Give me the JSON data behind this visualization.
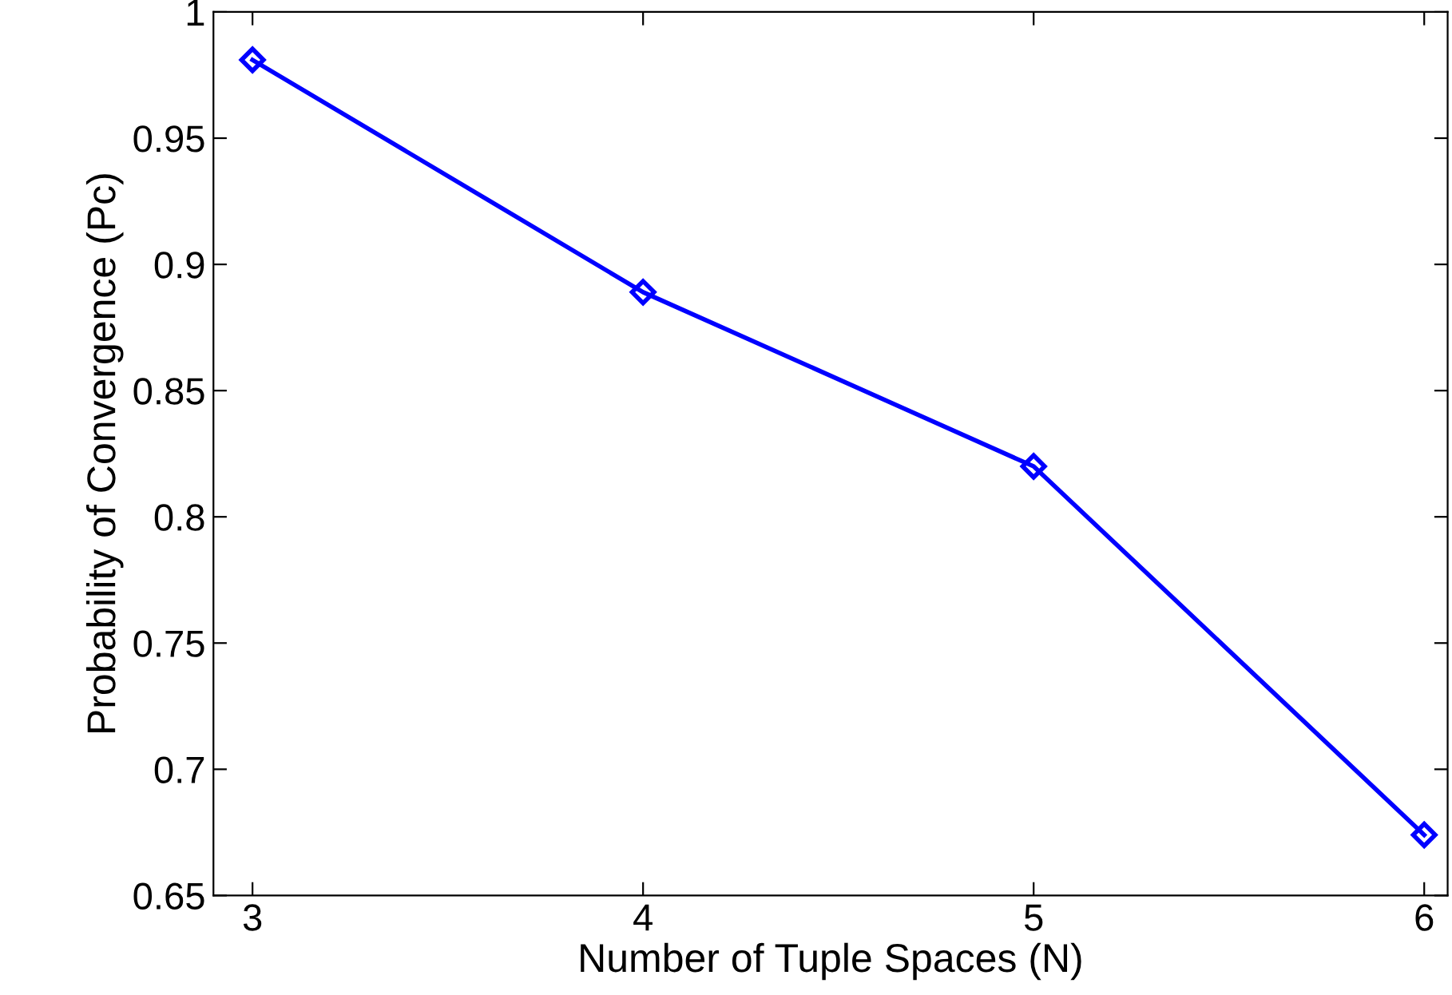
{
  "chart_data": {
    "type": "line",
    "xlabel": "Number of Tuple Spaces (N)",
    "ylabel": "Probability of Convergence (Pc)",
    "x": [
      3,
      4,
      5,
      6
    ],
    "series": [
      {
        "color": "#0000ff",
        "values": [
          0.981,
          0.889,
          0.82,
          0.674
        ]
      }
    ],
    "xlim": [
      2.9,
      6.06
    ],
    "xticks": [
      3,
      4,
      5,
      6
    ],
    "ylim": [
      0.65,
      1
    ],
    "yticks": [
      0.65,
      0.7,
      0.75,
      0.8,
      0.85,
      0.9,
      0.95,
      1
    ],
    "marker": "diamond",
    "line_style": "solid",
    "grid": false,
    "legend": false
  }
}
